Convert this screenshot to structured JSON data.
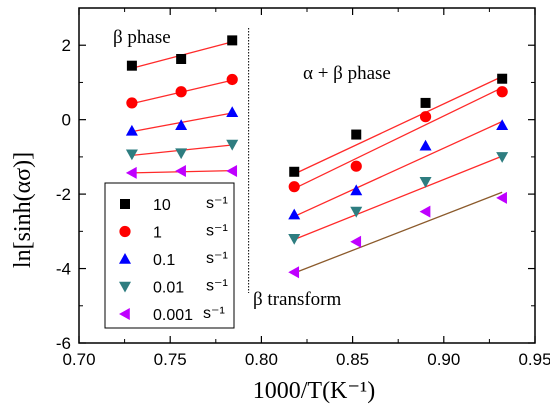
{
  "chart_data": {
    "type": "scatter",
    "title": "",
    "xlabel": "1000/T(K⁻¹)",
    "ylabel": "ln[sinh(ασ)]",
    "xlim": [
      0.7,
      0.95
    ],
    "ylim": [
      -6,
      3
    ],
    "x_ticks": [
      "0.70",
      "0.75",
      "0.80",
      "0.85",
      "0.90",
      "0.95"
    ],
    "y_ticks": [
      "-6",
      "-4",
      "-2",
      "0",
      "2"
    ],
    "x_tick_values": [
      0.7,
      0.75,
      0.8,
      0.85,
      0.9,
      0.95
    ],
    "y_tick_values": [
      -6,
      -4,
      -2,
      0,
      2
    ],
    "grid": false,
    "legend_position": "bottom-left",
    "divider_x": 0.793,
    "annotations": {
      "beta_phase": "β  phase",
      "alpha_beta_phase": "α + β phase",
      "beta_transform": "β  transform"
    },
    "series": [
      {
        "name": "10",
        "unit": "s⁻¹",
        "marker": "square",
        "color": "#000000",
        "x": [
          0.729,
          0.756,
          0.784,
          0.818,
          0.852,
          0.89,
          0.932
        ],
        "y": [
          1.45,
          1.63,
          2.13,
          -1.4,
          -0.4,
          0.45,
          1.1
        ],
        "fits": [
          {
            "x": [
              0.729,
              0.784
            ],
            "y": [
              1.38,
              2.09
            ]
          },
          {
            "x": [
              0.818,
              0.932
            ],
            "y": [
              -1.46,
              1.16
            ]
          }
        ]
      },
      {
        "name": "1",
        "unit": "s⁻¹",
        "marker": "circle",
        "color": "#ff0000",
        "x": [
          0.729,
          0.756,
          0.784,
          0.818,
          0.852,
          0.89,
          0.932
        ],
        "y": [
          0.45,
          0.75,
          1.08,
          -1.8,
          -1.25,
          0.08,
          0.75
        ],
        "fits": [
          {
            "x": [
              0.729,
              0.784
            ],
            "y": [
              0.43,
              1.06
            ]
          },
          {
            "x": [
              0.818,
              0.932
            ],
            "y": [
              -1.85,
              0.86
            ]
          }
        ]
      },
      {
        "name": "0.1",
        "unit": "s⁻¹",
        "marker": "triangle-up",
        "color": "#0000ff",
        "x": [
          0.729,
          0.756,
          0.784,
          0.818,
          0.852,
          0.89,
          0.932
        ],
        "y": [
          -0.3,
          -0.15,
          0.2,
          -2.55,
          -1.9,
          -0.7,
          -0.15
        ],
        "fits": [
          {
            "x": [
              0.729,
              0.784
            ],
            "y": [
              -0.32,
              0.18
            ]
          },
          {
            "x": [
              0.818,
              0.932
            ],
            "y": [
              -2.6,
              -0.05
            ]
          }
        ]
      },
      {
        "name": "0.01",
        "unit": "s⁻¹",
        "marker": "triangle-down",
        "color": "#2e7d80",
        "x": [
          0.729,
          0.756,
          0.784,
          0.818,
          0.852,
          0.89,
          0.932
        ],
        "y": [
          -0.93,
          -0.9,
          -0.67,
          -3.2,
          -2.47,
          -1.67,
          -1.0
        ],
        "fits": [
          {
            "x": [
              0.729,
              0.784
            ],
            "y": [
              -0.96,
              -0.68
            ]
          },
          {
            "x": [
              0.818,
              0.932
            ],
            "y": [
              -3.22,
              -0.98
            ]
          }
        ]
      },
      {
        "name": "0.001",
        "unit": "s⁻¹",
        "marker": "triangle-left",
        "color": "#bf00ff",
        "x": [
          0.729,
          0.756,
          0.784,
          0.818,
          0.852,
          0.89,
          0.932
        ],
        "y": [
          -1.43,
          -1.38,
          -1.38,
          -4.1,
          -3.28,
          -2.47,
          -2.1
        ],
        "fits": [
          {
            "x": [
              0.729,
              0.784
            ],
            "y": [
              -1.43,
              -1.37
            ]
          },
          {
            "x": [
              0.818,
              0.932
            ],
            "y": [
              -4.12,
              -1.95
            ]
          }
        ]
      }
    ],
    "fit_line_colors": {
      "beta": "#ff2a2a",
      "alpha_beta_lowest": "#8b5a2b"
    }
  }
}
